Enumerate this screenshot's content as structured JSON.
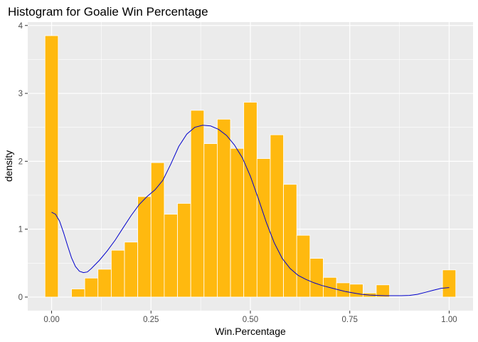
{
  "chart_data": {
    "type": "bar",
    "title": "Histogram for Goalie Win Percentage",
    "xlabel": "Win.Percentage",
    "ylabel": "density",
    "xlim": [
      -0.06,
      1.06
    ],
    "ylim": [
      -0.2,
      4.05
    ],
    "x_ticks": [
      0,
      0.25,
      0.5,
      0.75,
      1
    ],
    "x_tick_labels": [
      "0.00",
      "0.25",
      "0.50",
      "0.75",
      "1.00"
    ],
    "y_ticks": [
      0,
      1,
      2,
      3,
      4
    ],
    "y_tick_labels": [
      "0",
      "1",
      "2",
      "3",
      "4"
    ],
    "grid": true,
    "bin_width": 0.0333,
    "bins": [
      {
        "x": 0.0,
        "density": 3.85
      },
      {
        "x": 0.0333,
        "density": 0.0
      },
      {
        "x": 0.0667,
        "density": 0.12
      },
      {
        "x": 0.1,
        "density": 0.28
      },
      {
        "x": 0.1333,
        "density": 0.41
      },
      {
        "x": 0.1667,
        "density": 0.69
      },
      {
        "x": 0.2,
        "density": 0.81
      },
      {
        "x": 0.2333,
        "density": 1.48
      },
      {
        "x": 0.2667,
        "density": 1.98
      },
      {
        "x": 0.3,
        "density": 1.22
      },
      {
        "x": 0.3333,
        "density": 1.38
      },
      {
        "x": 0.3667,
        "density": 2.75
      },
      {
        "x": 0.4,
        "density": 2.26
      },
      {
        "x": 0.4333,
        "density": 2.62
      },
      {
        "x": 0.4667,
        "density": 2.19
      },
      {
        "x": 0.5,
        "density": 2.87
      },
      {
        "x": 0.5333,
        "density": 2.04
      },
      {
        "x": 0.5667,
        "density": 2.39
      },
      {
        "x": 0.6,
        "density": 1.66
      },
      {
        "x": 0.6333,
        "density": 0.91
      },
      {
        "x": 0.6667,
        "density": 0.57
      },
      {
        "x": 0.7,
        "density": 0.29
      },
      {
        "x": 0.7333,
        "density": 0.21
      },
      {
        "x": 0.7667,
        "density": 0.19
      },
      {
        "x": 0.8,
        "density": 0.06
      },
      {
        "x": 0.8333,
        "density": 0.18
      },
      {
        "x": 1.0,
        "density": 0.4
      }
    ],
    "density_curve": [
      [
        0.0,
        1.25
      ],
      [
        0.01,
        1.22
      ],
      [
        0.02,
        1.12
      ],
      [
        0.03,
        0.95
      ],
      [
        0.04,
        0.76
      ],
      [
        0.05,
        0.58
      ],
      [
        0.06,
        0.45
      ],
      [
        0.07,
        0.38
      ],
      [
        0.08,
        0.36
      ],
      [
        0.09,
        0.37
      ],
      [
        0.1,
        0.42
      ],
      [
        0.12,
        0.54
      ],
      [
        0.14,
        0.68
      ],
      [
        0.16,
        0.84
      ],
      [
        0.18,
        1.02
      ],
      [
        0.2,
        1.2
      ],
      [
        0.22,
        1.36
      ],
      [
        0.24,
        1.48
      ],
      [
        0.26,
        1.58
      ],
      [
        0.28,
        1.72
      ],
      [
        0.3,
        1.96
      ],
      [
        0.32,
        2.22
      ],
      [
        0.34,
        2.4
      ],
      [
        0.36,
        2.5
      ],
      [
        0.38,
        2.53
      ],
      [
        0.4,
        2.52
      ],
      [
        0.42,
        2.47
      ],
      [
        0.44,
        2.38
      ],
      [
        0.46,
        2.24
      ],
      [
        0.48,
        2.05
      ],
      [
        0.5,
        1.78
      ],
      [
        0.52,
        1.45
      ],
      [
        0.54,
        1.1
      ],
      [
        0.56,
        0.8
      ],
      [
        0.58,
        0.57
      ],
      [
        0.6,
        0.42
      ],
      [
        0.62,
        0.32
      ],
      [
        0.64,
        0.26
      ],
      [
        0.66,
        0.21
      ],
      [
        0.68,
        0.17
      ],
      [
        0.7,
        0.14
      ],
      [
        0.72,
        0.11
      ],
      [
        0.74,
        0.08
      ],
      [
        0.76,
        0.06
      ],
      [
        0.78,
        0.04
      ],
      [
        0.8,
        0.03
      ],
      [
        0.82,
        0.025
      ],
      [
        0.84,
        0.02
      ],
      [
        0.86,
        0.02
      ],
      [
        0.88,
        0.02
      ],
      [
        0.9,
        0.025
      ],
      [
        0.92,
        0.04
      ],
      [
        0.94,
        0.07
      ],
      [
        0.96,
        0.1
      ],
      [
        0.98,
        0.13
      ],
      [
        1.0,
        0.14
      ]
    ],
    "colors": {
      "bar_fill": "#FFB90F",
      "bar_outline": "#FFFFFF",
      "curve": "#0000CC",
      "panel_bg": "#EBEBEB",
      "grid": "#FFFFFF"
    }
  }
}
